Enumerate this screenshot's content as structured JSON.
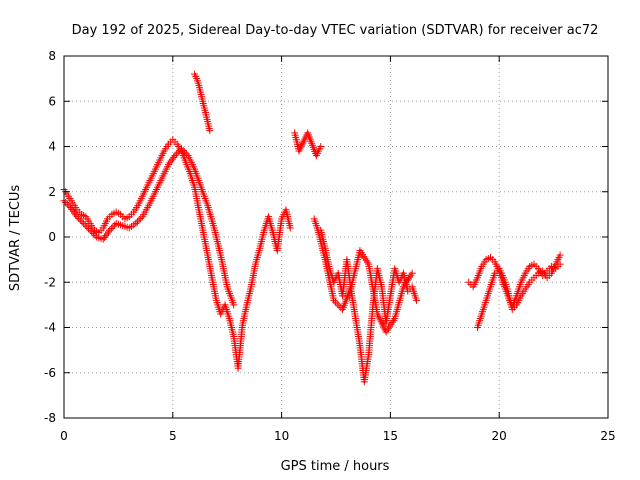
{
  "chart_data": {
    "type": "scatter",
    "title": "Day 192 of 2025, Sidereal Day-to-day VTEC variation (SDTVAR) for receiver ac72",
    "xlabel": "GPS time / hours",
    "ylabel": "SDTVAR / TECUs",
    "xlim": [
      0,
      25
    ],
    "ylim": [
      -8,
      8
    ],
    "xticks": [
      0,
      5,
      10,
      15,
      20,
      25
    ],
    "yticks": [
      -8,
      -6,
      -4,
      -2,
      0,
      2,
      4,
      6,
      8
    ],
    "xtick_labels": [
      "0",
      "5",
      "10",
      "15",
      "20",
      "25"
    ],
    "ytick_labels": [
      "-8",
      "-6",
      "-4",
      "-2",
      "0",
      "2",
      "4",
      "6",
      "8"
    ],
    "grid": true,
    "marker": "plus",
    "color": "#ff0000",
    "series": [
      {
        "name": "",
        "segments": [
          {
            "x": [
              0.0,
              0.2,
              0.4,
              0.6,
              0.8,
              1.0,
              1.2,
              1.4,
              1.6,
              1.8,
              2.0,
              2.2,
              2.4,
              2.6,
              2.8,
              3.0,
              3.2,
              3.4,
              3.6,
              3.8,
              4.0,
              4.2,
              4.4,
              4.6,
              4.8,
              5.0,
              5.2,
              5.4,
              5.6,
              5.8,
              6.0,
              6.2,
              6.4,
              6.6,
              6.8,
              7.0,
              7.2,
              7.4,
              7.6,
              7.8,
              8.0,
              8.2,
              8.4,
              8.6,
              8.8,
              9.0,
              9.2,
              9.4,
              9.6,
              9.8,
              10.0,
              10.2,
              10.4
            ],
            "y": [
              2.1,
              1.8,
              1.5,
              1.2,
              1.0,
              0.9,
              0.6,
              0.3,
              0.2,
              0.4,
              0.8,
              1.0,
              1.1,
              1.0,
              0.8,
              0.9,
              1.1,
              1.4,
              1.8,
              2.2,
              2.6,
              3.0,
              3.4,
              3.8,
              4.1,
              4.3,
              4.1,
              3.8,
              3.3,
              2.8,
              2.2,
              1.2,
              0.2,
              -0.8,
              -1.8,
              -2.8,
              -3.4,
              -3.0,
              -3.6,
              -4.4,
              -5.8,
              -3.9,
              -3.0,
              -2.2,
              -1.2,
              -0.5,
              0.3,
              0.9,
              0.2,
              -0.6,
              0.8,
              1.2,
              0.4
            ]
          },
          {
            "x": [
              0.0,
              0.3,
              0.6,
              0.9,
              1.2,
              1.5,
              1.8,
              2.1,
              2.4,
              2.7,
              3.0,
              3.3,
              3.6,
              3.9,
              4.2,
              4.5,
              4.8,
              5.1,
              5.4,
              5.7,
              6.0,
              6.3,
              6.6,
              6.9,
              7.2,
              7.5,
              7.8
            ],
            "y": [
              1.6,
              1.3,
              0.9,
              0.6,
              0.3,
              0.0,
              -0.1,
              0.3,
              0.6,
              0.5,
              0.4,
              0.6,
              0.9,
              1.4,
              2.0,
              2.6,
              3.2,
              3.6,
              3.9,
              3.6,
              3.0,
              2.2,
              1.4,
              0.4,
              -0.8,
              -2.2,
              -3.0
            ]
          },
          {
            "x": [
              6.0,
              6.1,
              6.2,
              6.3,
              6.4,
              6.5,
              6.6,
              6.7
            ],
            "y": [
              7.2,
              7.0,
              6.7,
              6.3,
              5.9,
              5.5,
              5.1,
              4.7
            ]
          },
          {
            "x": [
              10.6,
              10.8,
              11.2,
              11.6,
              11.8
            ],
            "y": [
              4.6,
              3.8,
              4.6,
              3.6,
              4.0
            ]
          },
          {
            "x": [
              11.8,
              12.0,
              12.2,
              12.4,
              12.6,
              12.8,
              13.0,
              13.2,
              13.4,
              13.6,
              13.8,
              14.0,
              14.2,
              14.4,
              14.6,
              14.8,
              15.0,
              15.2,
              15.4,
              15.6,
              15.8,
              16.0,
              16.2
            ],
            "y": [
              0.3,
              -0.5,
              -1.4,
              -2.0,
              -1.6,
              -2.6,
              -1.0,
              -2.4,
              -3.6,
              -4.8,
              -6.4,
              -5.2,
              -3.0,
              -1.4,
              -2.2,
              -3.8,
              -2.6,
              -1.4,
              -2.0,
              -1.6,
              -2.4,
              -2.2,
              -2.8
            ]
          },
          {
            "x": [
              11.5,
              11.7,
              12.0,
              12.4,
              12.8,
              13.2,
              13.6,
              14.0,
              14.4,
              14.8,
              15.2,
              15.6,
              16.0
            ],
            "y": [
              0.8,
              0.2,
              -1.0,
              -2.8,
              -3.2,
              -2.2,
              -0.6,
              -1.2,
              -3.4,
              -4.2,
              -3.6,
              -2.2,
              -1.6
            ]
          },
          {
            "x": [
              18.6,
              18.8,
              19.0,
              19.2,
              19.4,
              19.6,
              19.8,
              20.0,
              20.2,
              20.4,
              20.6,
              20.8,
              21.0,
              21.2,
              21.4,
              21.6,
              21.8,
              22.0,
              22.2,
              22.4,
              22.6,
              22.8
            ],
            "y": [
              -2.0,
              -2.2,
              -1.8,
              -1.3,
              -1.0,
              -0.9,
              -1.1,
              -1.5,
              -2.1,
              -2.6,
              -3.1,
              -2.6,
              -2.0,
              -1.6,
              -1.3,
              -1.2,
              -1.4,
              -1.7,
              -1.5,
              -1.3,
              -1.4,
              -1.2
            ]
          },
          {
            "x": [
              19.0,
              19.2,
              19.4,
              19.6,
              19.8,
              20.0,
              20.2,
              20.4,
              20.6,
              20.8,
              21.0,
              21.2,
              21.4,
              21.6,
              21.8,
              22.0,
              22.2,
              22.4,
              22.6,
              22.8
            ],
            "y": [
              -4.0,
              -3.4,
              -2.8,
              -2.2,
              -1.6,
              -1.4,
              -1.8,
              -2.4,
              -3.2,
              -3.0,
              -2.6,
              -2.3,
              -2.0,
              -1.8,
              -1.6,
              -1.5,
              -1.8,
              -1.6,
              -1.2,
              -0.8
            ]
          }
        ]
      }
    ]
  }
}
